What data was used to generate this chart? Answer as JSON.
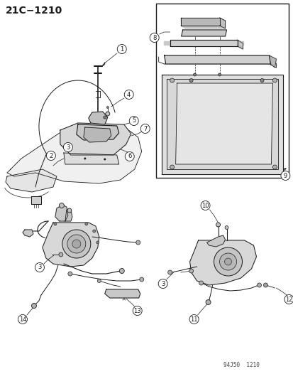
{
  "title": "21C−1210",
  "watermark": "94J50  1210",
  "bg_color": "#ffffff",
  "line_color": "#1a1a1a",
  "title_fontsize": 10,
  "watermark_fontsize": 5.5,
  "callout_fontsize": 6,
  "figsize": [
    4.14,
    5.33
  ],
  "dpi": 100
}
